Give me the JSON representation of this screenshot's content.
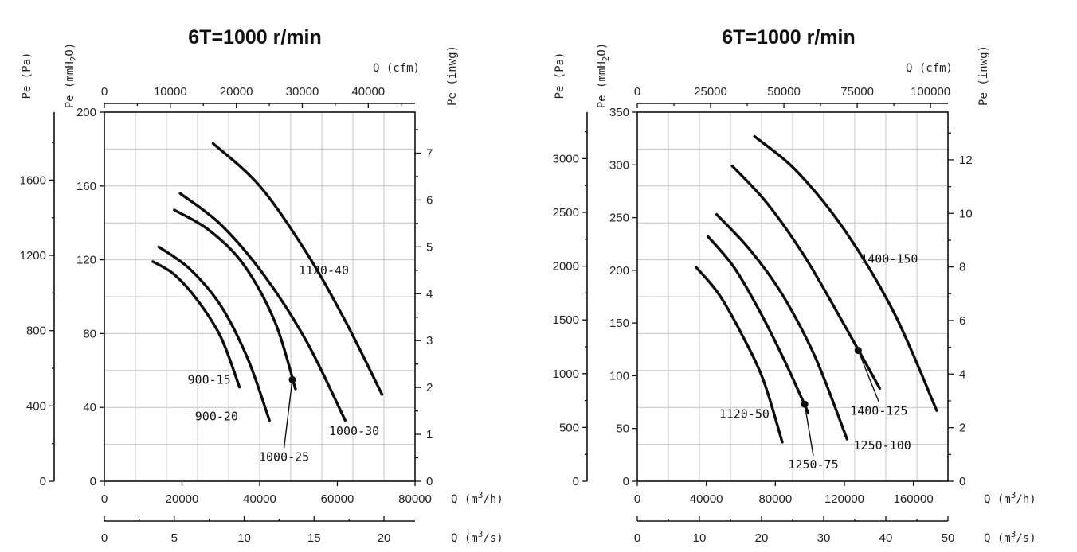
{
  "chart_data": [
    {
      "type": "line",
      "title": "6T=1000 r/min",
      "axes": {
        "x_bottom": {
          "label": "Q (m3/h)",
          "label_main": "Q (m",
          "label_sup": "3",
          "label_end": "/h)",
          "range": [
            0,
            80000
          ],
          "ticks": [
            0,
            20000,
            40000,
            60000,
            80000
          ],
          "tick_labels": [
            "0",
            "20000",
            "40000",
            "60000",
            "80000"
          ]
        },
        "x_bottom2": {
          "label": "Q (m3/s)",
          "label_main": "Q (m",
          "label_sup": "3",
          "label_end": "/s)",
          "range": [
            0,
            22.22
          ],
          "ticks": [
            0,
            5,
            10,
            15,
            20
          ],
          "tick_labels": [
            "0",
            "5",
            "10",
            "15",
            "20"
          ]
        },
        "x_top": {
          "label": "Q (cfm)",
          "range": [
            0,
            47086
          ],
          "ticks": [
            0,
            10000,
            20000,
            30000,
            40000
          ],
          "tick_labels": [
            "0",
            "10000",
            "20000",
            "30000",
            "40000"
          ]
        },
        "y_left_pa": {
          "label": "Pe (Pa)",
          "range": [
            0,
            1961
          ],
          "ticks": [
            0,
            400,
            800,
            1200,
            1600
          ],
          "tick_labels": [
            "0",
            "400",
            "800",
            "1200",
            "1600"
          ]
        },
        "y_left_mm": {
          "label": "Pe (mmH2O)",
          "label_main": "Pe (mmH",
          "label_sub": "2",
          "label_end": "O)",
          "range": [
            0,
            200
          ],
          "ticks": [
            0,
            40,
            80,
            120,
            160,
            200
          ],
          "tick_labels": [
            "0",
            "40",
            "80",
            "120",
            "160",
            "200"
          ]
        },
        "y_right": {
          "label": "Pe (inwg)",
          "range": [
            0,
            7.874
          ],
          "ticks": [
            0,
            1,
            2,
            3,
            4,
            5,
            6,
            7
          ],
          "tick_labels": [
            "0",
            "1",
            "2",
            "3",
            "4",
            "5",
            "6",
            "7"
          ]
        }
      },
      "grid": true,
      "series": [
        {
          "name": "900-15",
          "x": [
            12500,
            18000,
            24000,
            30000,
            34800
          ],
          "y": [
            119,
            112,
            98,
            78,
            51
          ],
          "label_value": [
            34200,
            51
          ]
        },
        {
          "name": "900-20",
          "x": [
            14000,
            22000,
            30000,
            37000,
            42500
          ],
          "y": [
            127,
            115,
            95,
            66,
            33
          ],
          "label_value": [
            33000,
            33
          ],
          "marker": false
        },
        {
          "name": "1000-25",
          "x": [
            18000,
            27000,
            36000,
            44000,
            49200
          ],
          "y": [
            147,
            136,
            117,
            86,
            50
          ],
          "marker_at": [
            48400,
            55
          ],
          "label_value": [
            47500,
            11
          ]
        },
        {
          "name": "1000-30",
          "x": [
            19500,
            30000,
            41000,
            52000,
            62000
          ],
          "y": [
            156,
            139,
            112,
            76,
            33
          ],
          "label_value": [
            63500,
            25
          ]
        },
        {
          "name": "1120-40",
          "x": [
            28000,
            40000,
            52000,
            62000,
            71500
          ],
          "y": [
            183,
            160,
            124,
            87,
            47
          ],
          "label_value": [
            56500,
            112
          ]
        }
      ]
    },
    {
      "type": "line",
      "title": "6T=1000 r/min",
      "axes": {
        "x_bottom": {
          "label": "Q (m3/h)",
          "label_main": "Q (m",
          "label_sup": "3",
          "label_end": "/h)",
          "range": [
            0,
            180000
          ],
          "ticks": [
            0,
            40000,
            80000,
            120000,
            160000
          ],
          "tick_labels": [
            "0",
            "40000",
            "80000",
            "120000",
            "160000"
          ]
        },
        "x_bottom2": {
          "label": "Q (m3/s)",
          "label_main": "Q (m",
          "label_sup": "3",
          "label_end": "/s)",
          "range": [
            0,
            50
          ],
          "ticks": [
            0,
            10,
            20,
            30,
            40,
            50
          ],
          "tick_labels": [
            "0",
            "10",
            "20",
            "30",
            "40",
            "50"
          ]
        },
        "x_top": {
          "label": "Q (cfm)",
          "range": [
            0,
            105944
          ],
          "ticks": [
            0,
            25000,
            50000,
            75000,
            100000
          ],
          "tick_labels": [
            "0",
            "25000",
            "50000",
            "75000",
            "100000"
          ]
        },
        "y_left_pa": {
          "label": "Pe (Pa)",
          "range": [
            0,
            3432
          ],
          "ticks": [
            0,
            500,
            1000,
            1500,
            2000,
            2500,
            3000
          ],
          "tick_labels": [
            "0",
            "500",
            "1000",
            "1500",
            "2000",
            "2500",
            "3000"
          ]
        },
        "y_left_mm": {
          "label": "Pe (mmH2O)",
          "label_main": "Pe (mmH",
          "label_sub": "2",
          "label_end": "O)",
          "range": [
            0,
            350
          ],
          "ticks": [
            0,
            50,
            100,
            150,
            200,
            250,
            300,
            350
          ],
          "tick_labels": [
            "0",
            "50",
            "100",
            "150",
            "200",
            "250",
            "300",
            "350"
          ]
        },
        "y_right": {
          "label": "Pe (inwg)",
          "range": [
            0,
            13.78
          ],
          "ticks": [
            0,
            2,
            4,
            6,
            8,
            10,
            12
          ],
          "tick_labels": [
            "0",
            "2",
            "4",
            "6",
            "8",
            "10",
            "12"
          ]
        }
      },
      "grid": true,
      "series": [
        {
          "name": "1120-50",
          "x": [
            34000,
            47000,
            60000,
            73000,
            84000
          ],
          "y": [
            203,
            178,
            141,
            96,
            37
          ],
          "label_value": [
            62000,
            60
          ]
        },
        {
          "name": "1250-75",
          "x": [
            41000,
            56000,
            71000,
            86000,
            99000
          ],
          "y": [
            232,
            203,
            161,
            112,
            65
          ],
          "marker_at": [
            97000,
            73
          ],
          "label_value": [
            102000,
            12
          ]
        },
        {
          "name": "1250-100",
          "x": [
            46000,
            65000,
            84000,
            103000,
            121500
          ],
          "y": [
            253,
            220,
            177,
            118,
            40
          ],
          "label_value": [
            142000,
            30
          ]
        },
        {
          "name": "1400-125",
          "x": [
            55000,
            75000,
            97000,
            119000,
            140500
          ],
          "y": [
            299,
            264,
            213,
            151,
            88
          ],
          "marker_at": [
            128000,
            124
          ],
          "label_value": [
            140000,
            63
          ]
        },
        {
          "name": "1400-150",
          "x": [
            68000,
            93000,
            121000,
            149000,
            173500
          ],
          "y": [
            327,
            293,
            236,
            159,
            67
          ],
          "label_value": [
            146000,
            207
          ]
        }
      ]
    }
  ]
}
